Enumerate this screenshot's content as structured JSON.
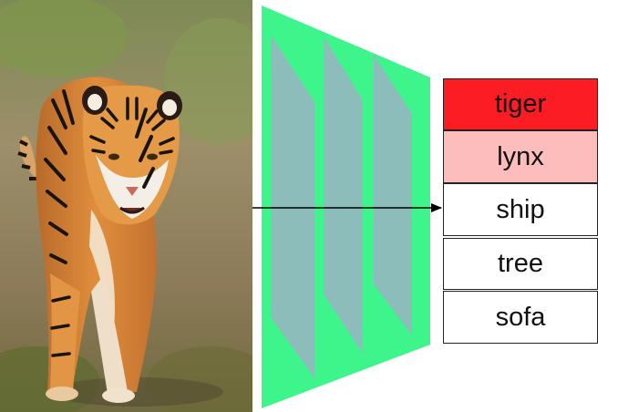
{
  "diagram": {
    "labels": [
      "tiger",
      "lynx",
      "ship",
      "tree",
      "sofa"
    ],
    "label_colors": [
      "#fc1c24",
      "#fdbdbd",
      "#ffffff",
      "#ffffff",
      "#ffffff"
    ],
    "network_color": "#3df58a",
    "layer_color": "#8dbdbb",
    "arrow_color": "#000000"
  }
}
